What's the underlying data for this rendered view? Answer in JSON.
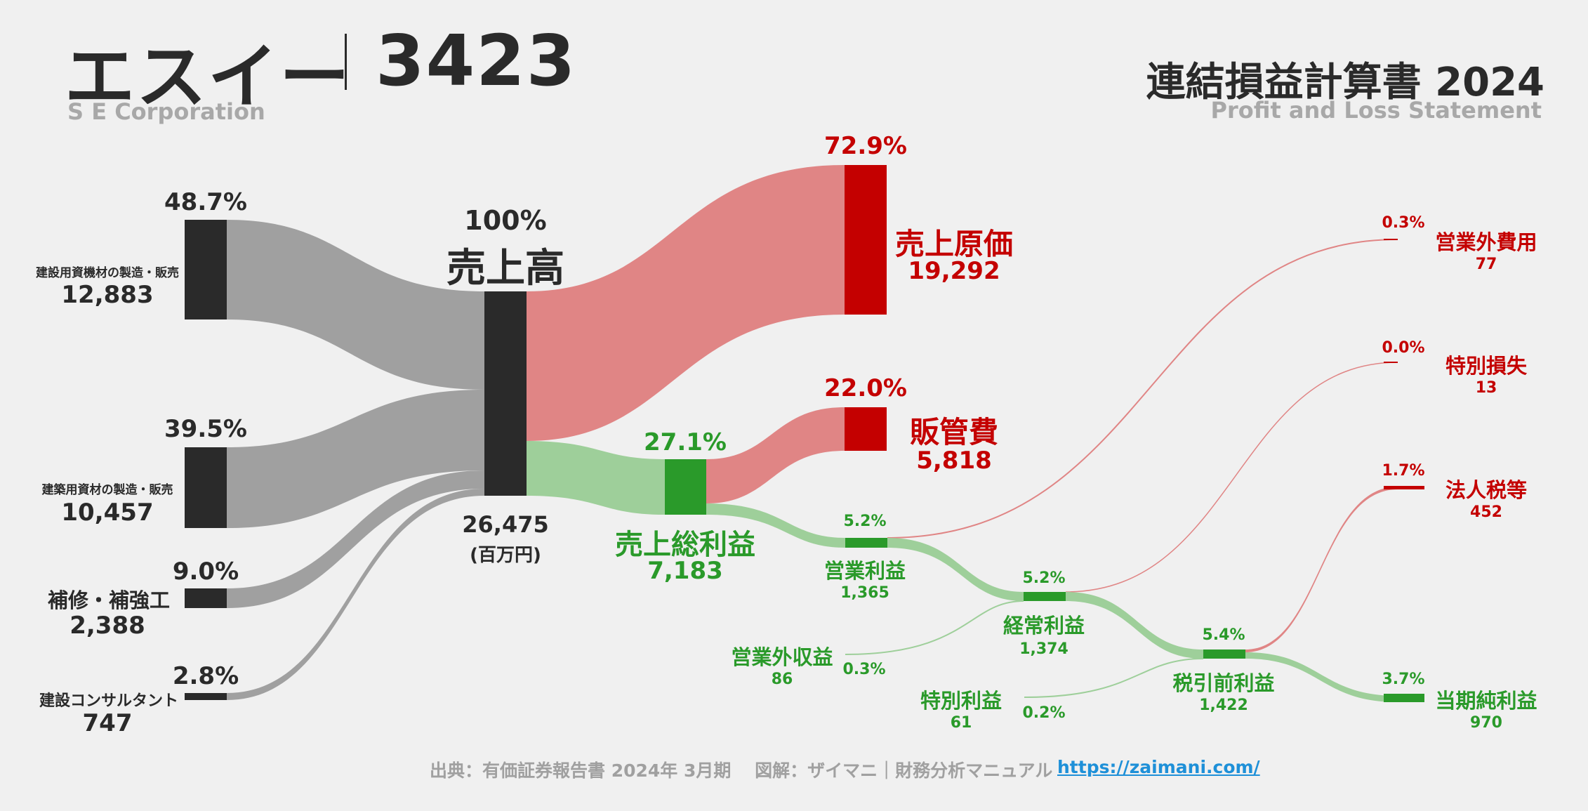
{
  "header": {
    "company": "エスイー",
    "code": "3423",
    "company_en": "S E Corporation",
    "report_title": "連結損益計算書 2024",
    "report_title_en": "Profit and Loss Statement"
  },
  "chart_data": {
    "type": "sankey",
    "unit": "(百万円)",
    "revenue_segments": [
      {
        "name": "建設用資機材の製造・販売",
        "value": "12,883",
        "pct": "48.7%"
      },
      {
        "name": "建築用資材の製造・販売",
        "value": "10,457",
        "pct": "39.5%"
      },
      {
        "name": "補修・補強工",
        "value": "2,388",
        "pct": "9.0%"
      },
      {
        "name": "建設コンサルタント",
        "value": "747",
        "pct": "2.8%"
      }
    ],
    "revenue": {
      "name": "売上高",
      "value": "26,475",
      "pct": "100%"
    },
    "cost_of_sales": {
      "name": "売上原価",
      "value": "19,292",
      "pct": "72.9%"
    },
    "sga": {
      "name": "販管費",
      "value": "5,818",
      "pct": "22.0%"
    },
    "gross_profit": {
      "name": "売上総利益",
      "value": "7,183",
      "pct": "27.1%"
    },
    "operating_profit": {
      "name": "営業利益",
      "value": "1,365",
      "pct": "5.2%"
    },
    "non_operating_expense": {
      "name": "営業外費用",
      "value": "77",
      "pct": "0.3%"
    },
    "non_operating_income": {
      "name": "営業外収益",
      "value": "86",
      "pct": "0.3%"
    },
    "ordinary_profit": {
      "name": "経常利益",
      "value": "1,374",
      "pct": "5.2%"
    },
    "extraordinary_loss": {
      "name": "特別損失",
      "value": "13",
      "pct": "0.0%"
    },
    "extraordinary_income": {
      "name": "特別利益",
      "value": "61",
      "pct": "0.2%"
    },
    "pretax_profit": {
      "name": "税引前利益",
      "value": "1,422",
      "pct": "5.4%"
    },
    "income_tax": {
      "name": "法人税等",
      "value": "452",
      "pct": "1.7%"
    },
    "net_income": {
      "name": "当期純利益",
      "value": "970",
      "pct": "3.7%"
    }
  },
  "footer": {
    "source": "出典：有価証券報告書 2024年 3月期　 図解：ザイマニ｜財務分析マニュアル",
    "url": "https://zaimani.com/"
  },
  "colors": {
    "background": "#f0f0f0",
    "dark_node": "#2a2a2a",
    "gray_flow": "#a0a0a0",
    "red_node": "#c40000",
    "red_flow": "#e08585",
    "green_node": "#2a9a2a",
    "green_flow": "#9ecf9a",
    "link": "#1e90d8"
  }
}
